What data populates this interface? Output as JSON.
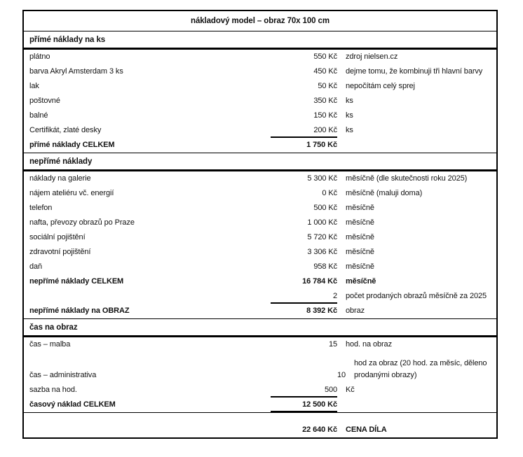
{
  "title": "nákladový model – obraz 70x 100 cm",
  "sections": [
    {
      "header": "přímé náklady na ks",
      "rows": [
        {
          "label": "plátno",
          "value": "550 Kč",
          "note": "zdroj nielsen.cz"
        },
        {
          "label": "barva Akryl Amsterdam 3 ks",
          "value": "450 Kč",
          "note": "dejme tomu, že kombinuji tři hlavní barvy"
        },
        {
          "label": "lak",
          "value": "50 Kč",
          "note": "nepočítám celý sprej"
        },
        {
          "label": "poštovné",
          "value": "350 Kč",
          "note": "ks"
        },
        {
          "label": "balné",
          "value": "150 Kč",
          "note": "ks"
        },
        {
          "label": "Certifikát, zlaté desky",
          "value": "200 Kč",
          "note": "ks"
        },
        {
          "label": "přímé náklady CELKEM",
          "value": "1 750 Kč",
          "note": ""
        }
      ]
    },
    {
      "header": "nepřímé náklady",
      "rows": [
        {
          "label": "náklady na galerie",
          "value": "5 300 Kč",
          "note": "měsíčně (dle skutečnosti roku 2025)"
        },
        {
          "label": "nájem ateliéru vč. energií",
          "value": "0 Kč",
          "note": "měsíčně (maluji doma)"
        },
        {
          "label": "telefon",
          "value": "500 Kč",
          "note": "měsíčně"
        },
        {
          "label": "nafta, převozy obrazů po Praze",
          "value": "1 000 Kč",
          "note": "měsíčně"
        },
        {
          "label": "sociální pojištění",
          "value": "5 720 Kč",
          "note": "měsíčně"
        },
        {
          "label": "zdravotní pojištění",
          "value": "3 306 Kč",
          "note": "měsíčně"
        },
        {
          "label": "daň",
          "value": "958 Kč",
          "note": "měsíčně"
        },
        {
          "label": "nepřímé náklady CELKEM",
          "value": "16 784 Kč",
          "note": "měsíčně"
        },
        {
          "label": "",
          "value": "2",
          "note": "počet prodaných obrazů měsíčně za 2025"
        },
        {
          "label": "nepřímé náklady na OBRAZ",
          "value": "8 392 Kč",
          "note": "obraz"
        }
      ]
    },
    {
      "header": "čas na obraz",
      "rows": [
        {
          "label": "čas – malba",
          "value": "15",
          "note": "hod. na obraz"
        },
        {
          "label": "čas – administrativa",
          "value": "10",
          "note": "hod za obraz (20 hod. za měsíc, děleno prodanými obrazy)"
        },
        {
          "label": "sazba na hod.",
          "value": "500",
          "note": "Kč"
        },
        {
          "label": "časový náklad CELKEM",
          "value": "12 500 Kč",
          "note": ""
        }
      ]
    },
    {
      "header": "",
      "rows": [
        {
          "label": "",
          "value": "22 640 Kč",
          "note": "CENA DÍLA"
        }
      ]
    }
  ]
}
